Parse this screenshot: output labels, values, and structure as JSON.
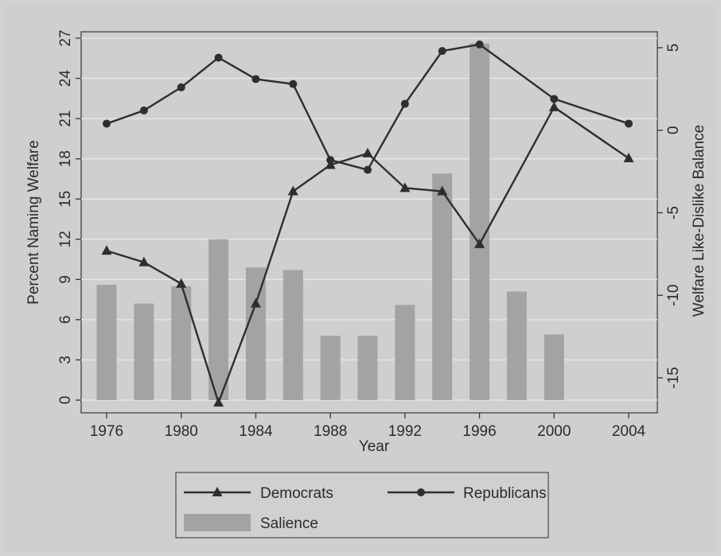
{
  "chart_data": {
    "type": "bar+line",
    "x_label": "Year",
    "y_left_label": "Percent Naming Welfare",
    "y_right_label": "Welfare Like-Dislike Balance",
    "x_ticks": [
      "1976",
      "1980",
      "1984",
      "1988",
      "1992",
      "1996",
      "2000",
      "2004"
    ],
    "y_left_ticks": [
      "0",
      "3",
      "6",
      "9",
      "12",
      "15",
      "18",
      "21",
      "24",
      "27"
    ],
    "y_right_ticks": [
      "-15",
      "-10",
      "-5",
      "0",
      "5"
    ],
    "y_left_range": [
      0,
      27
    ],
    "y_right_range": [
      -17,
      6
    ],
    "x_range": [
      1975,
      2005
    ],
    "bars": {
      "name": "Salience",
      "color": "#a3a3a3",
      "axis": "left",
      "x": [
        1976,
        1978,
        1980,
        1982,
        1984,
        1986,
        1988,
        1990,
        1992,
        1994,
        1996,
        1998,
        2000
      ],
      "values": [
        8.6,
        7.2,
        8.5,
        12.0,
        9.9,
        9.7,
        4.8,
        4.8,
        7.1,
        16.9,
        26.6,
        8.1,
        4.9
      ]
    },
    "series": [
      {
        "name": "Democrats",
        "marker": "triangle",
        "axis": "right",
        "x": [
          1976,
          1978,
          1980,
          1982,
          1984,
          1986,
          1988,
          1990,
          1992,
          1994,
          1996,
          1998,
          2000,
          2004
        ],
        "values": [
          null,
          null,
          null,
          null,
          null,
          null,
          null,
          null,
          null,
          null,
          null,
          null,
          null,
          null
        ]
      },
      {
        "name": "Republicans",
        "marker": "circle",
        "axis": "right",
        "x": [
          1976,
          1978,
          1980,
          1982,
          1984,
          1986,
          1988,
          1990,
          1992,
          1994,
          1996,
          2000,
          2004
        ],
        "values": [
          0.4,
          1.2,
          2.6,
          4.4,
          3.1,
          2.8,
          -1.8,
          -2.4,
          1.6,
          4.8,
          5.2,
          1.9,
          0.4
        ]
      }
    ],
    "democrats": {
      "x": [
        1976,
        1978,
        1980,
        1982,
        1984,
        1986,
        1988,
        1990,
        1992,
        1994,
        1996,
        2000,
        2004
      ],
      "values": [
        -7.3,
        -8.0,
        -9.3,
        -16.5,
        -10.5,
        -3.7,
        -2.1,
        -1.4,
        -3.5,
        -3.7,
        -6.9,
        1.4,
        -1.7
      ]
    },
    "grid": "horizontal",
    "legend": {
      "placement": "bottom",
      "items": [
        "Democrats",
        "Republicans",
        "Salience"
      ]
    }
  }
}
